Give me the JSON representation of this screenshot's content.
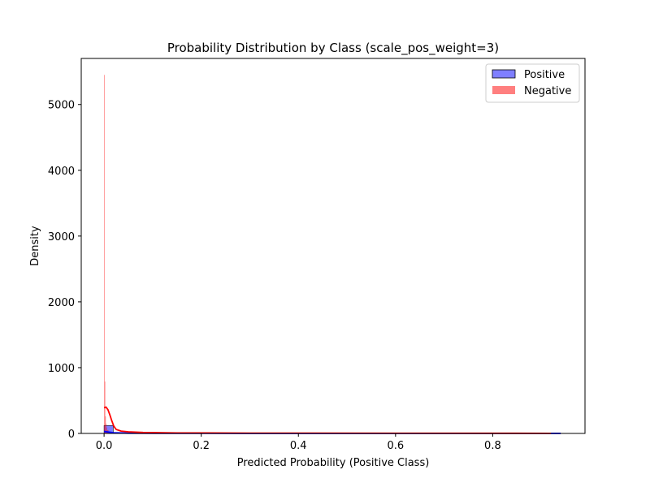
{
  "chart_data": {
    "type": "histogram",
    "title": "Probability Distribution by Class (scale_pos_weight=3)",
    "xlabel": "Predicted Probability (Positive Class)",
    "ylabel": "Density",
    "xlim": [
      -0.047,
      0.99
    ],
    "ylim": [
      0,
      5700
    ],
    "xticks": [
      {
        "value": 0.0,
        "label": "0.0"
      },
      {
        "value": 0.2,
        "label": "0.2"
      },
      {
        "value": 0.4,
        "label": "0.4"
      },
      {
        "value": 0.6,
        "label": "0.6"
      },
      {
        "value": 0.8,
        "label": "0.8"
      }
    ],
    "yticks": [
      {
        "value": 0,
        "label": "0"
      },
      {
        "value": 1000,
        "label": "1000"
      },
      {
        "value": 2000,
        "label": "2000"
      },
      {
        "value": 3000,
        "label": "3000"
      },
      {
        "value": 4000,
        "label": "4000"
      },
      {
        "value": 5000,
        "label": "5000"
      }
    ],
    "legend_position": "top-right",
    "grid": false,
    "series": [
      {
        "name": "Positive",
        "color": "#0000ff",
        "bins": [
          {
            "x0": 0.0,
            "x1": 0.0188,
            "density": 120
          },
          {
            "x0": 0.0188,
            "x1": 0.0376,
            "density": 12
          },
          {
            "x0": 0.0376,
            "x1": 0.0564,
            "density": 5
          },
          {
            "x0": 0.0564,
            "x1": 0.0752,
            "density": 3
          },
          {
            "x0": 0.0752,
            "x1": 0.094,
            "density": 2
          },
          {
            "x0": 0.094,
            "x1": 0.94,
            "density": 1
          }
        ],
        "kde": [
          {
            "x": 0.0,
            "y": 30
          },
          {
            "x": 0.02,
            "y": 10
          },
          {
            "x": 0.05,
            "y": 4
          },
          {
            "x": 0.1,
            "y": 2
          },
          {
            "x": 0.3,
            "y": 1
          },
          {
            "x": 0.6,
            "y": 0.5
          },
          {
            "x": 0.94,
            "y": 0.5
          }
        ]
      },
      {
        "name": "Negative",
        "color": "#ff0000",
        "bins": [
          {
            "x0": 0.0,
            "x1": 0.0012,
            "density": 5450
          },
          {
            "x0": 0.0012,
            "x1": 0.0024,
            "density": 790
          },
          {
            "x0": 0.0024,
            "x1": 0.0036,
            "density": 260
          },
          {
            "x0": 0.0036,
            "x1": 0.0048,
            "density": 150
          },
          {
            "x0": 0.0048,
            "x1": 0.006,
            "density": 90
          },
          {
            "x0": 0.006,
            "x1": 0.009,
            "density": 50
          },
          {
            "x0": 0.009,
            "x1": 0.015,
            "density": 25
          },
          {
            "x0": 0.015,
            "x1": 0.03,
            "density": 8
          },
          {
            "x0": 0.03,
            "x1": 0.93,
            "density": 1
          }
        ],
        "kde": [
          {
            "x": 0.0,
            "y": 390
          },
          {
            "x": 0.004,
            "y": 400
          },
          {
            "x": 0.008,
            "y": 360
          },
          {
            "x": 0.012,
            "y": 280
          },
          {
            "x": 0.016,
            "y": 190
          },
          {
            "x": 0.02,
            "y": 110
          },
          {
            "x": 0.025,
            "y": 60
          },
          {
            "x": 0.035,
            "y": 35
          },
          {
            "x": 0.05,
            "y": 25
          },
          {
            "x": 0.08,
            "y": 15
          },
          {
            "x": 0.15,
            "y": 8
          },
          {
            "x": 0.3,
            "y": 5
          },
          {
            "x": 0.6,
            "y": 3
          },
          {
            "x": 0.92,
            "y": 2
          }
        ]
      }
    ]
  }
}
